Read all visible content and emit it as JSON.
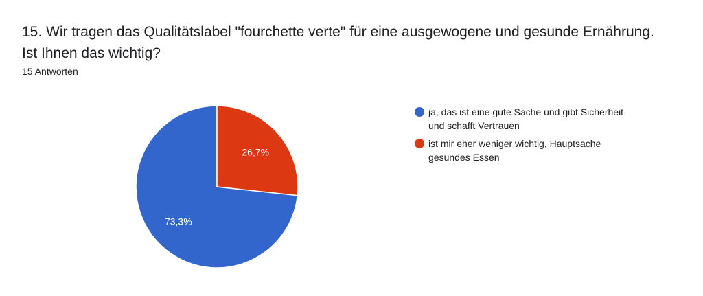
{
  "question": {
    "line1": "15. Wir tragen das Qualitätslabel \"fourchette verte\" für eine ausgewogene und gesunde Ernährung.",
    "line2": "Ist Ihnen das wichtig?"
  },
  "responses_label": "15 Antworten",
  "chart_data": {
    "type": "pie",
    "title": "",
    "slices": [
      {
        "label": "ja, das ist eine gute Sache und gibt Sicherheit und schafft Vertrauen",
        "value": 73.3,
        "display": "73,3%",
        "color": "#3366cc"
      },
      {
        "label": "ist mir eher weniger wichtig, Hauptsache gesundes Essen",
        "value": 26.7,
        "display": "26,7%",
        "color": "#dc3912"
      }
    ],
    "legend_position": "right"
  }
}
